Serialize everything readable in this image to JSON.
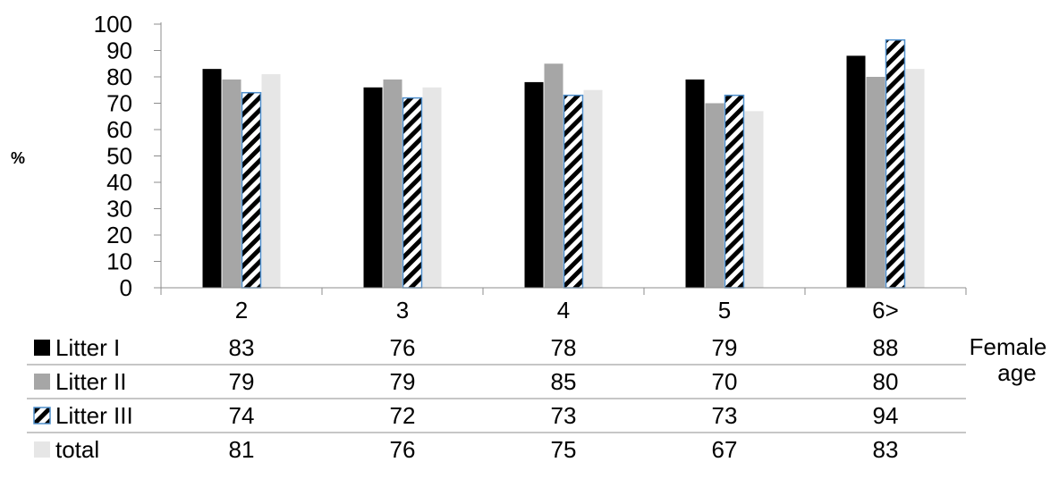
{
  "chart_data": {
    "type": "bar",
    "categories": [
      "2",
      "3",
      "4",
      "5",
      "6>"
    ],
    "series": [
      {
        "name": "Litter I",
        "values": [
          83,
          76,
          78,
          79,
          88
        ],
        "color": "#000000",
        "pattern": "solid"
      },
      {
        "name": "Litter II",
        "values": [
          79,
          79,
          85,
          70,
          80
        ],
        "color": "#a6a6a6",
        "pattern": "solid"
      },
      {
        "name": "Litter III",
        "values": [
          74,
          72,
          73,
          73,
          94
        ],
        "color": "#000000",
        "pattern": "diagonal-stripes",
        "border": "#4f8fcc"
      },
      {
        "name": "total",
        "values": [
          81,
          76,
          75,
          67,
          83
        ],
        "color": "#e6e6e6",
        "pattern": "solid"
      }
    ],
    "y_ticks": [
      "0",
      "10",
      "20",
      "30",
      "40",
      "50",
      "60",
      "70",
      "80",
      "90",
      "100"
    ],
    "ylim": [
      0,
      100
    ],
    "ylabel": "%",
    "xlabel": "Female age",
    "grid": false,
    "legend": "data-table"
  }
}
